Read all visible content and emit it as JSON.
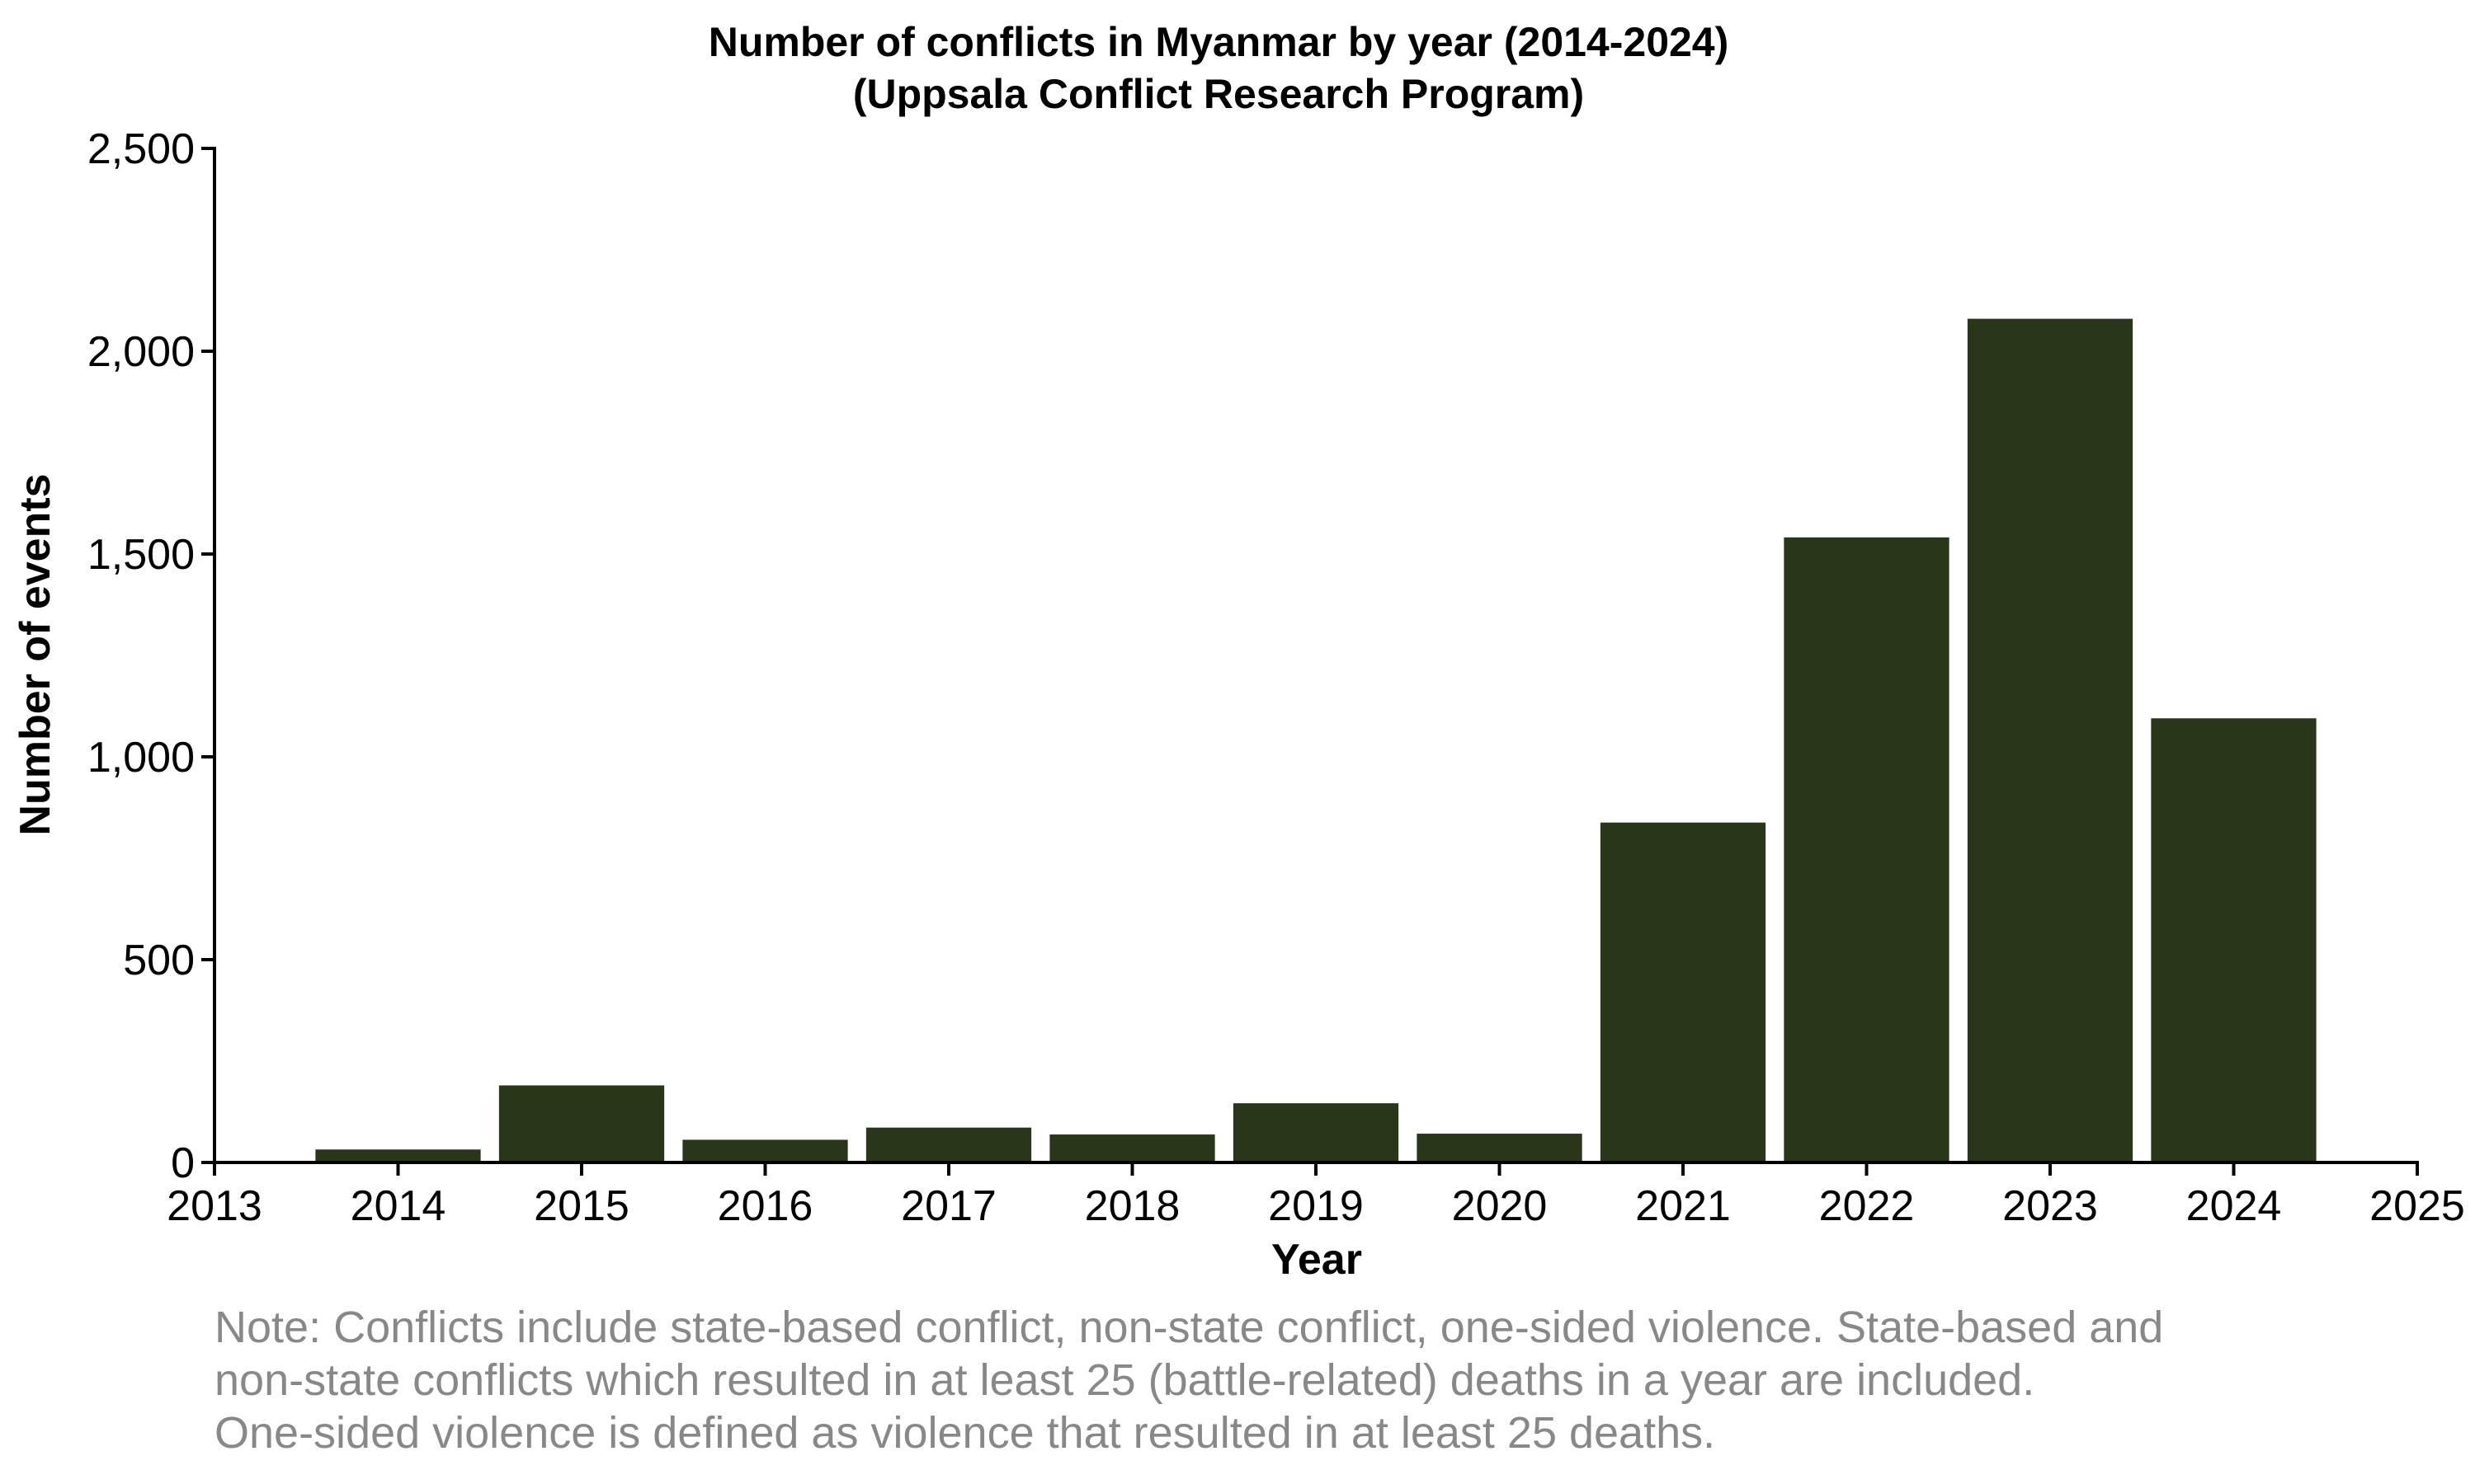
{
  "chart_data": {
    "type": "bar",
    "title": "Number of conflicts in Myanmar by year (2014-2024)",
    "subtitle": "(Uppsala Conflict Research Program)",
    "xlabel": "Year",
    "ylabel": "Number of events",
    "categories": [
      "2014",
      "2015",
      "2016",
      "2017",
      "2018",
      "2019",
      "2020",
      "2021",
      "2022",
      "2023",
      "2024"
    ],
    "x": [
      2014,
      2015,
      2016,
      2017,
      2018,
      2019,
      2020,
      2021,
      2022,
      2023,
      2024
    ],
    "values": [
      32,
      190,
      56,
      86,
      69,
      146,
      71,
      838,
      1541,
      2080,
      1095
    ],
    "xlim": [
      2013,
      2025
    ],
    "ylim": [
      0,
      2500
    ],
    "xticks": [
      2013,
      2014,
      2015,
      2016,
      2017,
      2018,
      2019,
      2020,
      2021,
      2022,
      2023,
      2024,
      2025
    ],
    "xtick_labels": [
      "2013",
      "2014",
      "2015",
      "2016",
      "2017",
      "2018",
      "2019",
      "2020",
      "2021",
      "2022",
      "2023",
      "2024",
      "2025"
    ],
    "yticks": [
      0,
      500,
      1000,
      1500,
      2000,
      2500
    ],
    "ytick_labels": [
      "0",
      "500",
      "1,000",
      "1,500",
      "2,000",
      "2,500"
    ],
    "bar_color": "#29361a",
    "grid": false,
    "legend": "none"
  },
  "note": {
    "lines": [
      "Note: Conflicts include state-based conflict, non-state conflict, one-sided violence. State-based and",
      "non-state conflicts which resulted in at least 25 (battle-related) deaths in a year are included.",
      "One-sided violence is defined as violence that resulted in at least 25 deaths."
    ]
  }
}
